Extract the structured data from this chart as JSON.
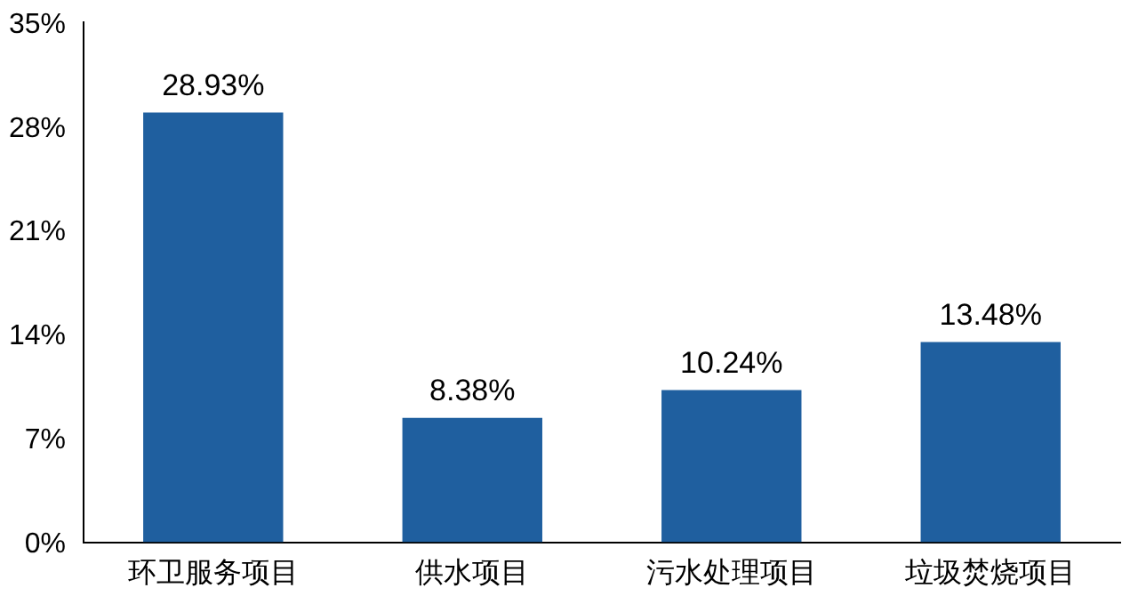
{
  "chart_data": {
    "type": "bar",
    "categories": [
      "环卫服务项目",
      "供水项目",
      "污水处理项目",
      "垃圾焚烧项目"
    ],
    "values": [
      28.93,
      8.38,
      10.24,
      13.48
    ],
    "value_labels": [
      "28.93%",
      "8.38%",
      "10.24%",
      "13.48%"
    ],
    "color": "#1f5f9f",
    "ylim": [
      0,
      35
    ],
    "yticks": [
      {
        "value": 0,
        "label": "0%"
      },
      {
        "value": 7,
        "label": "7%"
      },
      {
        "value": 14,
        "label": "14%"
      },
      {
        "value": 21,
        "label": "21%"
      },
      {
        "value": 28,
        "label": "28%"
      },
      {
        "value": 35,
        "label": "35%"
      }
    ],
    "grid": false,
    "legend": false
  }
}
